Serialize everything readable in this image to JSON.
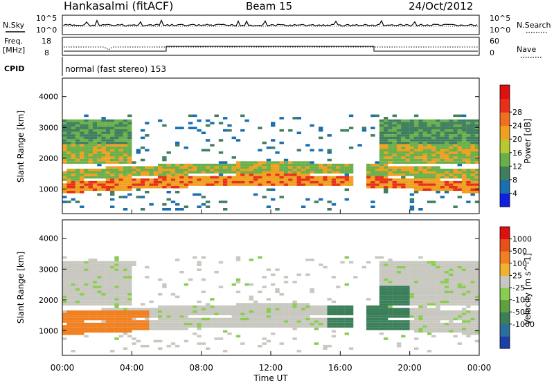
{
  "header": {
    "station": "Hankasalmi (fitACF)",
    "beam": "Beam 15",
    "date": "24/Oct/2012"
  },
  "strips": {
    "nsky": {
      "label": "N.Sky",
      "ticks": [
        "10^5",
        "10^0"
      ],
      "right_label": "N.Search",
      "right_ticks": [
        "10^5",
        "10^0"
      ]
    },
    "freq": {
      "label_line1": "Freq.",
      "label_line2": "[MHz]",
      "ticks": [
        "18",
        "8"
      ],
      "right_label": "Nave",
      "right_ticks": [
        "60",
        "0"
      ]
    },
    "cpid": {
      "label": "CPID",
      "text": "normal (fast stereo) 153"
    }
  },
  "chart_data": [
    {
      "type": "heatmap",
      "name": "power",
      "ylabel": "Slant Range [km]",
      "xlabel": "Time UT",
      "xlim": [
        "00:00",
        "24:00"
      ],
      "x_tick_labels": [
        "00:00",
        "04:00",
        "08:00",
        "12:00",
        "16:00",
        "20:00",
        "00:00"
      ],
      "ylim": [
        200,
        4600
      ],
      "y_ticks": [
        1000,
        2000,
        3000,
        4000
      ],
      "colorbar_label": "Power [dB]",
      "colorbar_ticks": [
        "4",
        "8",
        "12",
        "16",
        "20",
        "24",
        "28"
      ],
      "colorbar_colors": [
        "#1020e0",
        "#1a6fb0",
        "#3f7f5f",
        "#6ab04a",
        "#b8c830",
        "#f0a020",
        "#f07020",
        "#e83018",
        "#e01010"
      ]
    },
    {
      "type": "heatmap",
      "name": "velocity",
      "ylabel": "Slant Range [km]",
      "xlabel": "Time UT",
      "xlim": [
        "00:00",
        "24:00"
      ],
      "x_tick_labels": [
        "00:00",
        "04:00",
        "08:00",
        "12:00",
        "16:00",
        "20:00",
        "00:00"
      ],
      "ylim": [
        200,
        4600
      ],
      "y_ticks": [
        1000,
        2000,
        3000,
        4000
      ],
      "colorbar_label": "Velocity [m s^-1]",
      "colorbar_ticks": [
        "1000",
        "500",
        "100",
        "25",
        "-25",
        "-100",
        "-500",
        "-1000"
      ],
      "colorbar_colors": [
        "#1f3fa8",
        "#2b6fa0",
        "#3a7f5a",
        "#5fa040",
        "#8acc50",
        "#c8c8c0",
        "#f0b030",
        "#f08020",
        "#e85018",
        "#e01010"
      ]
    }
  ]
}
